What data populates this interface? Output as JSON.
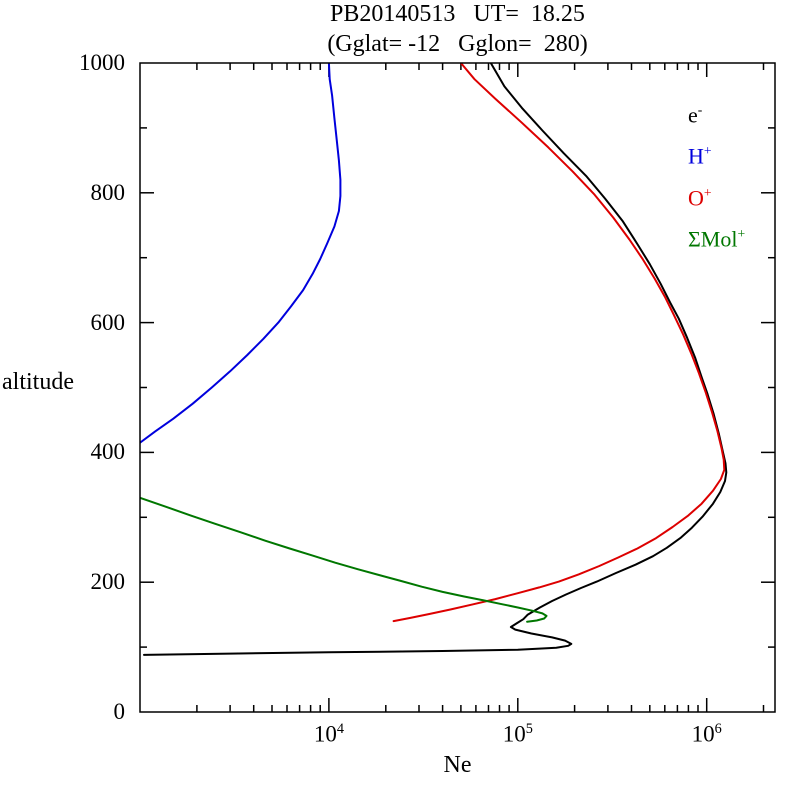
{
  "header": {
    "title": "PB20140513   UT=  18.25",
    "subtitle": "(Gglat= -12   Gglon=  280)"
  },
  "axes": {
    "x_label": "Ne",
    "y_label": "altitude"
  },
  "legend": {
    "items": [
      {
        "id": "electron",
        "base": "e",
        "sup": "-",
        "color": "#000000"
      },
      {
        "id": "h-plus",
        "base": "H",
        "sup": "+",
        "color": "#0000dd"
      },
      {
        "id": "o-plus",
        "base": "O",
        "sup": "+",
        "color": "#dd0000"
      },
      {
        "id": "mol-plus",
        "base": "ΣMol",
        "sup": "+",
        "color": "#007700"
      }
    ]
  },
  "chart_data": {
    "type": "line",
    "title": "PB20140513 UT= 18.25",
    "subtitle": "(Gglat= -12 Gglon= 280)",
    "xlabel": "Ne",
    "ylabel": "altitude",
    "x_scale": "log",
    "xlim": [
      1000,
      2300000
    ],
    "ylim": [
      0,
      1000
    ],
    "grid": false,
    "legend_position": "upper-right-inside",
    "x_tick_exponents": [
      4,
      5,
      6
    ],
    "y_major_step": 200,
    "y_minor_step": 100,
    "series": [
      {
        "id": "electron",
        "name": "e-",
        "color": "#000000",
        "points": [
          [
            1050,
            88
          ],
          [
            3000,
            90
          ],
          [
            10000,
            92
          ],
          [
            40000,
            94
          ],
          [
            100000,
            96
          ],
          [
            160000,
            99
          ],
          [
            185000,
            102
          ],
          [
            192000,
            105
          ],
          [
            178000,
            110
          ],
          [
            152000,
            115
          ],
          [
            118000,
            121
          ],
          [
            97000,
            127
          ],
          [
            92000,
            131
          ],
          [
            99000,
            137
          ],
          [
            107000,
            143
          ],
          [
            113000,
            150
          ],
          [
            131000,
            161
          ],
          [
            152000,
            171
          ],
          [
            180000,
            181
          ],
          [
            216000,
            191
          ],
          [
            262000,
            201
          ],
          [
            330000,
            214
          ],
          [
            420000,
            227
          ],
          [
            520000,
            240
          ],
          [
            615000,
            253
          ],
          [
            725000,
            268
          ],
          [
            835000,
            284
          ],
          [
            950000,
            301
          ],
          [
            1080000,
            321
          ],
          [
            1180000,
            339
          ],
          [
            1250000,
            356
          ],
          [
            1270000,
            369
          ],
          [
            1258000,
            383
          ],
          [
            1220000,
            400
          ],
          [
            1160000,
            429
          ],
          [
            1090000,
            459
          ],
          [
            1010000,
            490
          ],
          [
            940000,
            516
          ],
          [
            868000,
            546
          ],
          [
            790000,
            576
          ],
          [
            712000,
            606
          ],
          [
            640000,
            631
          ],
          [
            570000,
            660
          ],
          [
            500000,
            690
          ],
          [
            430000,
            721
          ],
          [
            360000,
            756
          ],
          [
            290000,
            791
          ],
          [
            230000,
            826
          ],
          [
            175000,
            861
          ],
          [
            135000,
            896
          ],
          [
            105000,
            931
          ],
          [
            85000,
            964
          ],
          [
            72000,
            1000
          ]
        ]
      },
      {
        "id": "h-plus",
        "name": "H+",
        "color": "#0000dd",
        "points": [
          [
            1000,
            415
          ],
          [
            1200,
            432
          ],
          [
            1500,
            452
          ],
          [
            1900,
            475
          ],
          [
            2400,
            500
          ],
          [
            3000,
            525
          ],
          [
            3700,
            550
          ],
          [
            4500,
            575
          ],
          [
            5400,
            600
          ],
          [
            6300,
            625
          ],
          [
            7300,
            650
          ],
          [
            8200,
            675
          ],
          [
            9000,
            698
          ],
          [
            9800,
            722
          ],
          [
            10700,
            748
          ],
          [
            11300,
            772
          ],
          [
            11500,
            795
          ],
          [
            11500,
            820
          ],
          [
            11300,
            850
          ],
          [
            11000,
            882
          ],
          [
            10700,
            915
          ],
          [
            10400,
            950
          ],
          [
            10100,
            975
          ],
          [
            10000,
            1000
          ]
        ]
      },
      {
        "id": "o-plus",
        "name": "O+",
        "color": "#dd0000",
        "points": [
          [
            22000,
            140
          ],
          [
            27000,
            145
          ],
          [
            34000,
            151
          ],
          [
            44000,
            158
          ],
          [
            58000,
            166
          ],
          [
            76000,
            174
          ],
          [
            100000,
            183
          ],
          [
            130000,
            192
          ],
          [
            165000,
            201
          ],
          [
            210000,
            212
          ],
          [
            270000,
            225
          ],
          [
            340000,
            238
          ],
          [
            430000,
            252
          ],
          [
            540000,
            268
          ],
          [
            660000,
            285
          ],
          [
            800000,
            303
          ],
          [
            940000,
            321
          ],
          [
            1080000,
            341
          ],
          [
            1190000,
            359
          ],
          [
            1240000,
            373
          ],
          [
            1230000,
            389
          ],
          [
            1200000,
            406
          ],
          [
            1140000,
            433
          ],
          [
            1070000,
            461
          ],
          [
            990000,
            492
          ],
          [
            910000,
            522
          ],
          [
            830000,
            552
          ],
          [
            750000,
            582
          ],
          [
            670000,
            612
          ],
          [
            600000,
            640
          ],
          [
            530000,
            668
          ],
          [
            460000,
            697
          ],
          [
            390000,
            728
          ],
          [
            320000,
            762
          ],
          [
            255000,
            797
          ],
          [
            195000,
            833
          ],
          [
            145000,
            870
          ],
          [
            105000,
            908
          ],
          [
            76000,
            945
          ],
          [
            59000,
            975
          ],
          [
            50000,
            1000
          ]
        ]
      },
      {
        "id": "mol-plus",
        "name": "ΣMol+",
        "color": "#007700",
        "points": [
          [
            1000,
            330
          ],
          [
            1350,
            317
          ],
          [
            1850,
            303
          ],
          [
            2500,
            290
          ],
          [
            3400,
            277
          ],
          [
            4600,
            264
          ],
          [
            6200,
            252
          ],
          [
            8200,
            241
          ],
          [
            10800,
            230
          ],
          [
            14200,
            220
          ],
          [
            18500,
            211
          ],
          [
            24000,
            202
          ],
          [
            31000,
            193
          ],
          [
            40000,
            185
          ],
          [
            52000,
            178
          ],
          [
            66000,
            172
          ],
          [
            83000,
            166
          ],
          [
            100000,
            161
          ],
          [
            120000,
            156
          ],
          [
            135000,
            152
          ],
          [
            142000,
            148
          ],
          [
            138000,
            144
          ],
          [
            126000,
            141
          ],
          [
            112000,
            139
          ]
        ]
      }
    ]
  }
}
